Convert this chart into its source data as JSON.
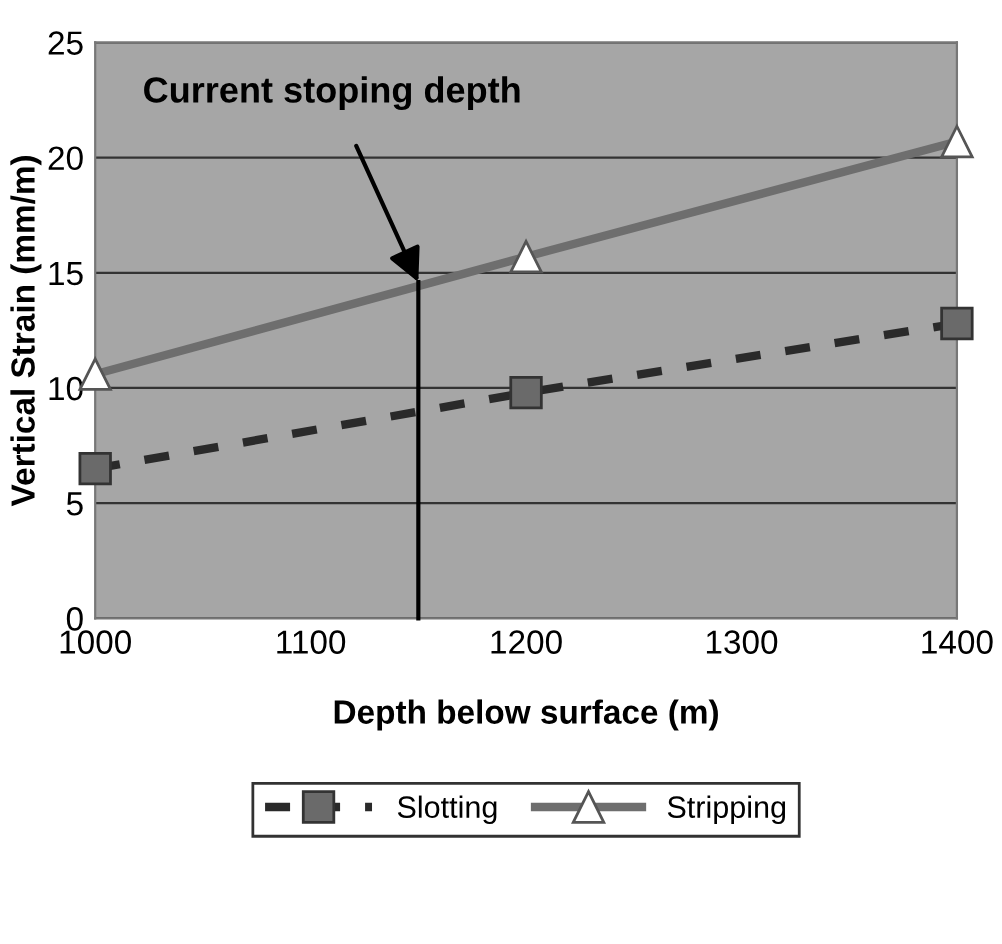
{
  "chart_data": {
    "type": "line",
    "xlabel": "Depth below surface (m)",
    "ylabel": "Vertical Strain (mm/m)",
    "xlim": [
      1000,
      1400
    ],
    "xticks": [
      1000,
      1100,
      1200,
      1300,
      1400
    ],
    "ylim": [
      0,
      25
    ],
    "yticks": [
      0,
      5,
      10,
      15,
      20,
      25
    ],
    "grid": "y",
    "legend": "bottom",
    "series": [
      {
        "name": "Slotting",
        "color": "#2a2a2a",
        "x": [
          1000,
          1200,
          1400
        ],
        "values": [
          6.5,
          9.8,
          12.8
        ],
        "marker": "square",
        "line_style": "dashed"
      },
      {
        "name": "Stripping",
        "color": "#6e6e6e",
        "x": [
          1000,
          1200,
          1400
        ],
        "values": [
          10.6,
          15.7,
          20.7
        ],
        "marker": "triangle",
        "line_style": "solid"
      },
      {
        "color": "#000000",
        "x": [
          1150,
          1150
        ],
        "values": [
          0,
          14.6
        ],
        "marker": "none",
        "line_style": "solid"
      }
    ],
    "annotations": [
      {
        "text": "Current stoping depth",
        "x": 1150,
        "y": 14.6
      }
    ]
  }
}
